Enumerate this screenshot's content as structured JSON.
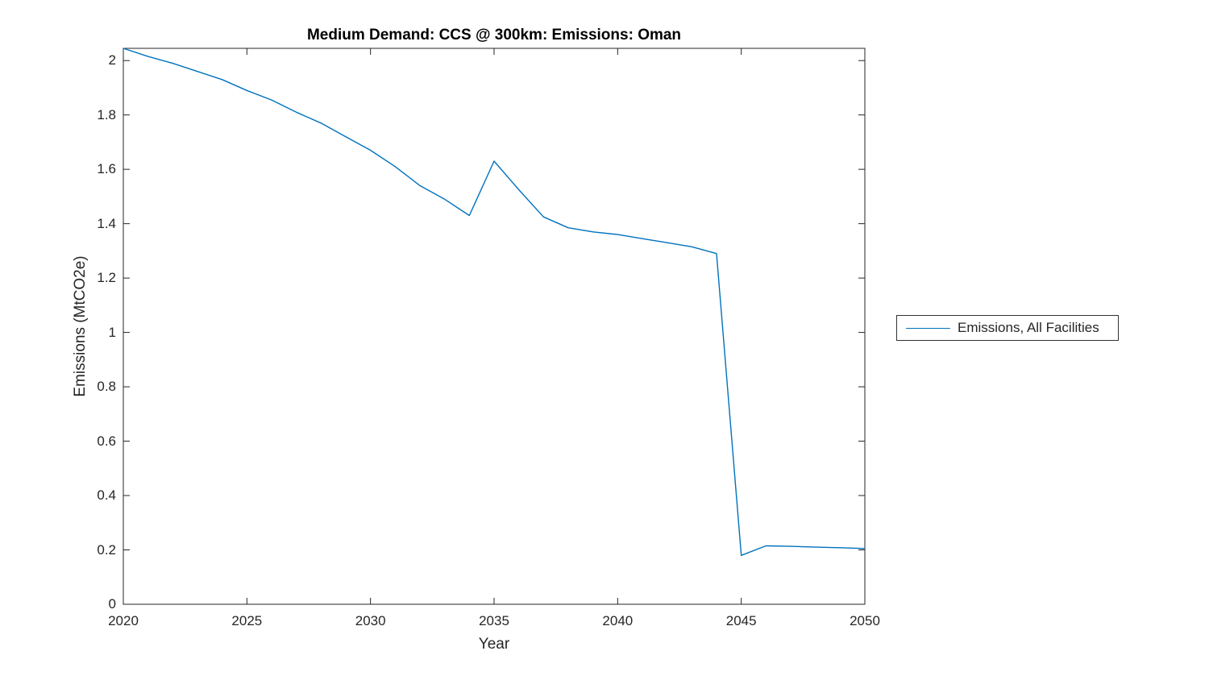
{
  "chart_data": {
    "type": "line",
    "title": "Medium Demand: CCS @ 300km: Emissions: Oman",
    "xlabel": "Year",
    "ylabel": "Emissions (MtCO2e)",
    "xlim": [
      2020,
      2050
    ],
    "ylim": [
      0,
      2.045
    ],
    "xticks": [
      2020,
      2025,
      2030,
      2035,
      2040,
      2045,
      2050
    ],
    "yticks": [
      0,
      0.2,
      0.4,
      0.6,
      0.8,
      1,
      1.2,
      1.4,
      1.6,
      1.8,
      2
    ],
    "grid": false,
    "legend_position": "right-outside",
    "line_color": "#0072BD",
    "axis_color": "#262626",
    "background_color": "#ffffff",
    "series": [
      {
        "name": "Emissions, All Facilities",
        "x": [
          2020,
          2021,
          2022,
          2023,
          2024,
          2025,
          2026,
          2027,
          2028,
          2029,
          2030,
          2031,
          2032,
          2033,
          2034,
          2035,
          2036,
          2037,
          2038,
          2039,
          2040,
          2041,
          2042,
          2043,
          2044,
          2045,
          2046,
          2047,
          2048,
          2049,
          2050
        ],
        "values": [
          2.045,
          2.015,
          1.99,
          1.96,
          1.93,
          1.89,
          1.855,
          1.81,
          1.77,
          1.72,
          1.67,
          1.61,
          1.54,
          1.49,
          1.43,
          1.63,
          1.525,
          1.425,
          1.385,
          1.37,
          1.36,
          1.345,
          1.33,
          1.315,
          1.29,
          0.18,
          0.215,
          0.213,
          0.21,
          0.208,
          0.205
        ]
      }
    ]
  }
}
